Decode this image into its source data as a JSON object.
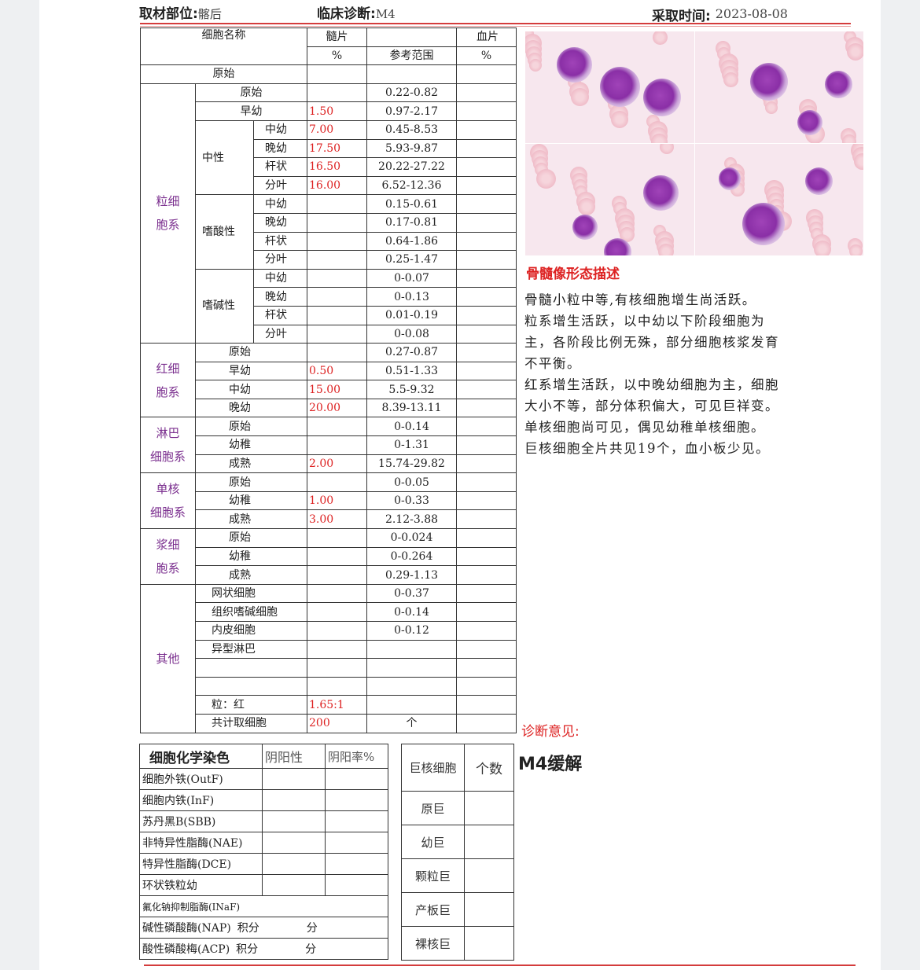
{
  "header": {
    "site_label": "取材部位:",
    "site_value": "髂后",
    "diagnosis_label": "临床诊断:",
    "diagnosis_value": "M4",
    "date_label": "采取时间:",
    "date_value": "2023-08-08"
  },
  "main_table": {
    "col_name": "细胞名称",
    "col_marrow": "髓片",
    "col_marrow_unit": "%",
    "col_ref": "参考范围",
    "col_blood": "血片",
    "col_blood_unit": "%",
    "top_row": {
      "name": "原始",
      "marrow": "",
      "ref": ""
    },
    "groups": [
      {
        "label": [
          "粒细",
          "胞系"
        ],
        "items": [
          {
            "name": "原始",
            "marrow": "",
            "ref": "0.22-0.82"
          },
          {
            "name": "早幼",
            "marrow": "1.50",
            "ref": "0.97-2.17"
          },
          {
            "sub": "中性",
            "rows": [
              {
                "name": "中幼",
                "marrow": "7.00",
                "ref": "0.45-8.53"
              },
              {
                "name": "晚幼",
                "marrow": "17.50",
                "ref": "5.93-9.87"
              },
              {
                "name": "杆状",
                "marrow": "16.50",
                "ref": "20.22-27.22"
              },
              {
                "name": "分叶",
                "marrow": "16.00",
                "ref": "6.52-12.36"
              }
            ]
          },
          {
            "sub": "嗜酸性",
            "rows": [
              {
                "name": "中幼",
                "marrow": "",
                "ref": "0.15-0.61"
              },
              {
                "name": "晚幼",
                "marrow": "",
                "ref": "0.17-0.81"
              },
              {
                "name": "杆状",
                "marrow": "",
                "ref": "0.64-1.86"
              },
              {
                "name": "分叶",
                "marrow": "",
                "ref": "0.25-1.47"
              }
            ]
          },
          {
            "sub": "嗜碱性",
            "rows": [
              {
                "name": "中幼",
                "marrow": "",
                "ref": "0-0.07"
              },
              {
                "name": "晚幼",
                "marrow": "",
                "ref": "0-0.13"
              },
              {
                "name": "杆状",
                "marrow": "",
                "ref": "0.01-0.19"
              },
              {
                "name": "分叶",
                "marrow": "",
                "ref": "0-0.08"
              }
            ]
          }
        ]
      },
      {
        "label": [
          "红细",
          "胞系"
        ],
        "items": [
          {
            "name": "原始",
            "marrow": "",
            "ref": "0.27-0.87"
          },
          {
            "name": "早幼",
            "marrow": "0.50",
            "ref": "0.51-1.33"
          },
          {
            "name": "中幼",
            "marrow": "15.00",
            "ref": "5.5-9.32"
          },
          {
            "name": "晚幼",
            "marrow": "20.00",
            "ref": "8.39-13.11"
          }
        ]
      },
      {
        "label": [
          "淋巴",
          "细胞系"
        ],
        "items": [
          {
            "name": "原始",
            "marrow": "",
            "ref": "0-0.14"
          },
          {
            "name": "幼稚",
            "marrow": "",
            "ref": "0-1.31"
          },
          {
            "name": "成熟",
            "marrow": "2.00",
            "ref": "15.74-29.82"
          }
        ]
      },
      {
        "label": [
          "单核",
          "细胞系"
        ],
        "items": [
          {
            "name": "原始",
            "marrow": "",
            "ref": "0-0.05"
          },
          {
            "name": "幼稚",
            "marrow": "1.00",
            "ref": "0-0.33"
          },
          {
            "name": "成熟",
            "marrow": "3.00",
            "ref": "2.12-3.88"
          }
        ]
      },
      {
        "label": [
          "浆细",
          "胞系"
        ],
        "items": [
          {
            "name": "原始",
            "marrow": "",
            "ref": "0-0.024"
          },
          {
            "name": "幼稚",
            "marrow": "",
            "ref": "0-0.264"
          },
          {
            "name": "成熟",
            "marrow": "",
            "ref": "0.29-1.13"
          }
        ]
      },
      {
        "label": [
          "其他"
        ],
        "items": [
          {
            "name": "网状细胞",
            "marrow": "",
            "ref": "0-0.37"
          },
          {
            "name": "组织嗜碱细胞",
            "marrow": "",
            "ref": "0-0.14"
          },
          {
            "name": "内皮细胞",
            "marrow": "",
            "ref": "0-0.12"
          },
          {
            "name": "异型淋巴",
            "marrow": "",
            "ref": ""
          },
          {
            "name": "",
            "marrow": "",
            "ref": ""
          },
          {
            "name": "",
            "marrow": "",
            "ref": ""
          },
          {
            "name": "粒：红",
            "marrow": "1.65:1",
            "ref": ""
          },
          {
            "name": "共计取细胞",
            "marrow": "200",
            "ref": "个"
          }
        ]
      }
    ]
  },
  "morphology": {
    "title": "骨髓像形态描述",
    "lines": [
      "骨髓小粒中等,有核细胞增生尚活跃。",
      "粒系增生活跃，以中幼以下阶段细胞为",
      "主，各阶段比例无殊，部分细胞核浆发育",
      "不平衡。",
      "红系增生活跃，以中晚幼细胞为主，细胞",
      "大小不等，部分体积偏大，可见巨祥变。",
      "单核细胞尚可见，偶见幼稚单核细胞。",
      "巨核细胞全片共见19个，血小板少见。"
    ]
  },
  "diagnosis": {
    "title": "诊断意见:",
    "value": "M4缓解"
  },
  "chem_table": {
    "headers": [
      "细胞化学染色",
      "阴阳性",
      "阴阳率%"
    ],
    "rows": [
      "细胞外铁(OutF)",
      "细胞内铁(InF)",
      "苏丹黑B(SBB)",
      "非特异性脂酶(NAE)",
      "特异性脂酶(DCE)",
      "环状铁粒幼"
    ],
    "naf": "氟化钠抑制脂酶(INaF)",
    "nap": {
      "label": "碱性磷酸酶(NAP)",
      "score": "积分",
      "unit": "分"
    },
    "acp": {
      "label": "酸性磷酸梅(ACP)",
      "score": "积分",
      "unit": "分"
    }
  },
  "mega_table": {
    "headers": [
      "巨核细胞",
      "个数"
    ],
    "rows": [
      "原巨",
      "幼巨",
      "颗粒巨",
      "产板巨",
      "裸核巨"
    ]
  },
  "colors": {
    "accent_red": "#d22222",
    "group_purple": "#7a2e8e"
  }
}
